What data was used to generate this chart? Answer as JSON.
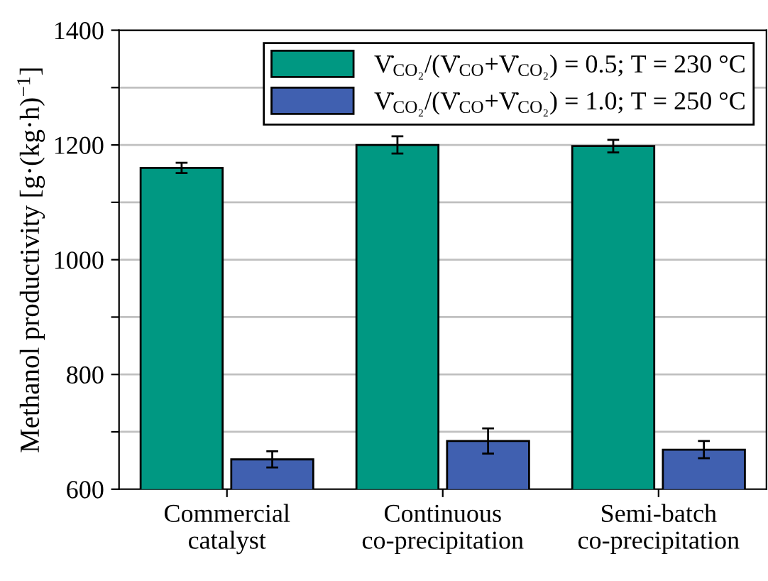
{
  "chart_data": {
    "type": "bar",
    "ylabel": "Methanol productivity [g·(kg·h)$^{−1}$]",
    "categories": [
      "Commercial\ncatalyst",
      "Continuous\nco-precipitation",
      "Semi-batch\nco-precipitation"
    ],
    "series": [
      {
        "name": "V̇$_{CO₂}$/(V̇$_{CO}$+V̇$_{CO₂}$) = 0.5; T = 230 °C",
        "color": "#009882",
        "values": [
          1160,
          1200,
          1198
        ],
        "errors": [
          9,
          15,
          11
        ]
      },
      {
        "name": "V̇$_{CO₂}$/(V̇$_{CO}$+V̇$_{CO₂}$) = 1.0; T = 250 °C",
        "color": "#4060b0",
        "values": [
          652,
          684,
          669
        ],
        "errors": [
          14,
          22,
          15
        ]
      }
    ],
    "ylim": [
      600,
      1400
    ],
    "yticks": [
      600,
      {
        "value": 700,
        "label": null
      },
      800,
      {
        "value": 900,
        "label": null
      },
      1000,
      {
        "value": 1100,
        "label": null
      },
      1200,
      {
        "value": 1300,
        "label": null
      },
      1400
    ],
    "grid": "y",
    "legend": "top right"
  }
}
